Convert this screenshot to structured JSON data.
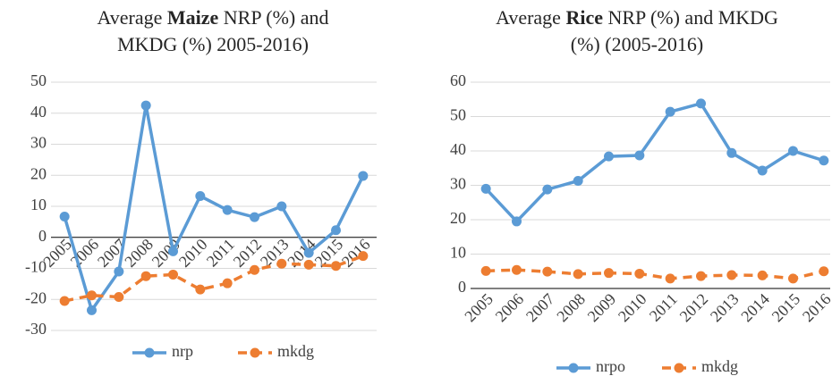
{
  "chart_data": [
    {
      "type": "line",
      "title": [
        [
          {
            "text": "Average ",
            "bold": false
          },
          {
            "text": "Maize",
            "bold": true
          },
          {
            "text": " NRP (%) and",
            "bold": false
          }
        ],
        [
          {
            "text": "MKDG (%) 2005-2016)",
            "bold": false
          }
        ]
      ],
      "categories": [
        "2005",
        "2006",
        "2007",
        "2008",
        "2009",
        "2010",
        "2011",
        "2012",
        "2013",
        "2014",
        "2015",
        "2016"
      ],
      "series": [
        {
          "name": "nrp",
          "color": "#5b9bd5",
          "dashed": false,
          "values": [
            6.7,
            -23.5,
            -11,
            42.5,
            -4.5,
            13.3,
            8.8,
            6.5,
            10,
            -5,
            2.3,
            19.8
          ]
        },
        {
          "name": "mkdg",
          "color": "#ed7d31",
          "dashed": true,
          "values": [
            -20.5,
            -18.7,
            -19.2,
            -12.5,
            -12,
            -16.8,
            -14.8,
            -10.5,
            -8.5,
            -8.8,
            -9.2,
            -6
          ]
        }
      ],
      "ylim": [
        -30,
        50
      ],
      "yticks": [
        -30,
        -20,
        -10,
        0,
        10,
        20,
        30,
        40,
        50
      ],
      "grid": true,
      "legend": "bottom"
    },
    {
      "type": "line",
      "title": [
        [
          {
            "text": "Average ",
            "bold": false
          },
          {
            "text": "Rice",
            "bold": true
          },
          {
            "text": " NRP (%) and MKDG",
            "bold": false
          }
        ],
        [
          {
            "text": "(%) (2005-2016)",
            "bold": false
          }
        ]
      ],
      "categories": [
        "2005",
        "2006",
        "2007",
        "2008",
        "2009",
        "2010",
        "2011",
        "2012",
        "2013",
        "2014",
        "2015",
        "2016"
      ],
      "series": [
        {
          "name": "nrpo",
          "color": "#5b9bd5",
          "dashed": false,
          "values": [
            29,
            19.5,
            28.8,
            31.3,
            38.4,
            38.7,
            51.4,
            53.8,
            39.4,
            34.3,
            40,
            37.2
          ]
        },
        {
          "name": "mkdg",
          "color": "#ed7d31",
          "dashed": true,
          "values": [
            5.1,
            5.4,
            4.9,
            4.2,
            4.5,
            4.3,
            2.9,
            3.6,
            3.9,
            3.8,
            2.9,
            5.0
          ]
        }
      ],
      "ylim": [
        0,
        60
      ],
      "yticks": [
        0,
        10,
        20,
        30,
        40,
        50,
        60
      ],
      "grid": true,
      "legend": "bottom"
    }
  ]
}
